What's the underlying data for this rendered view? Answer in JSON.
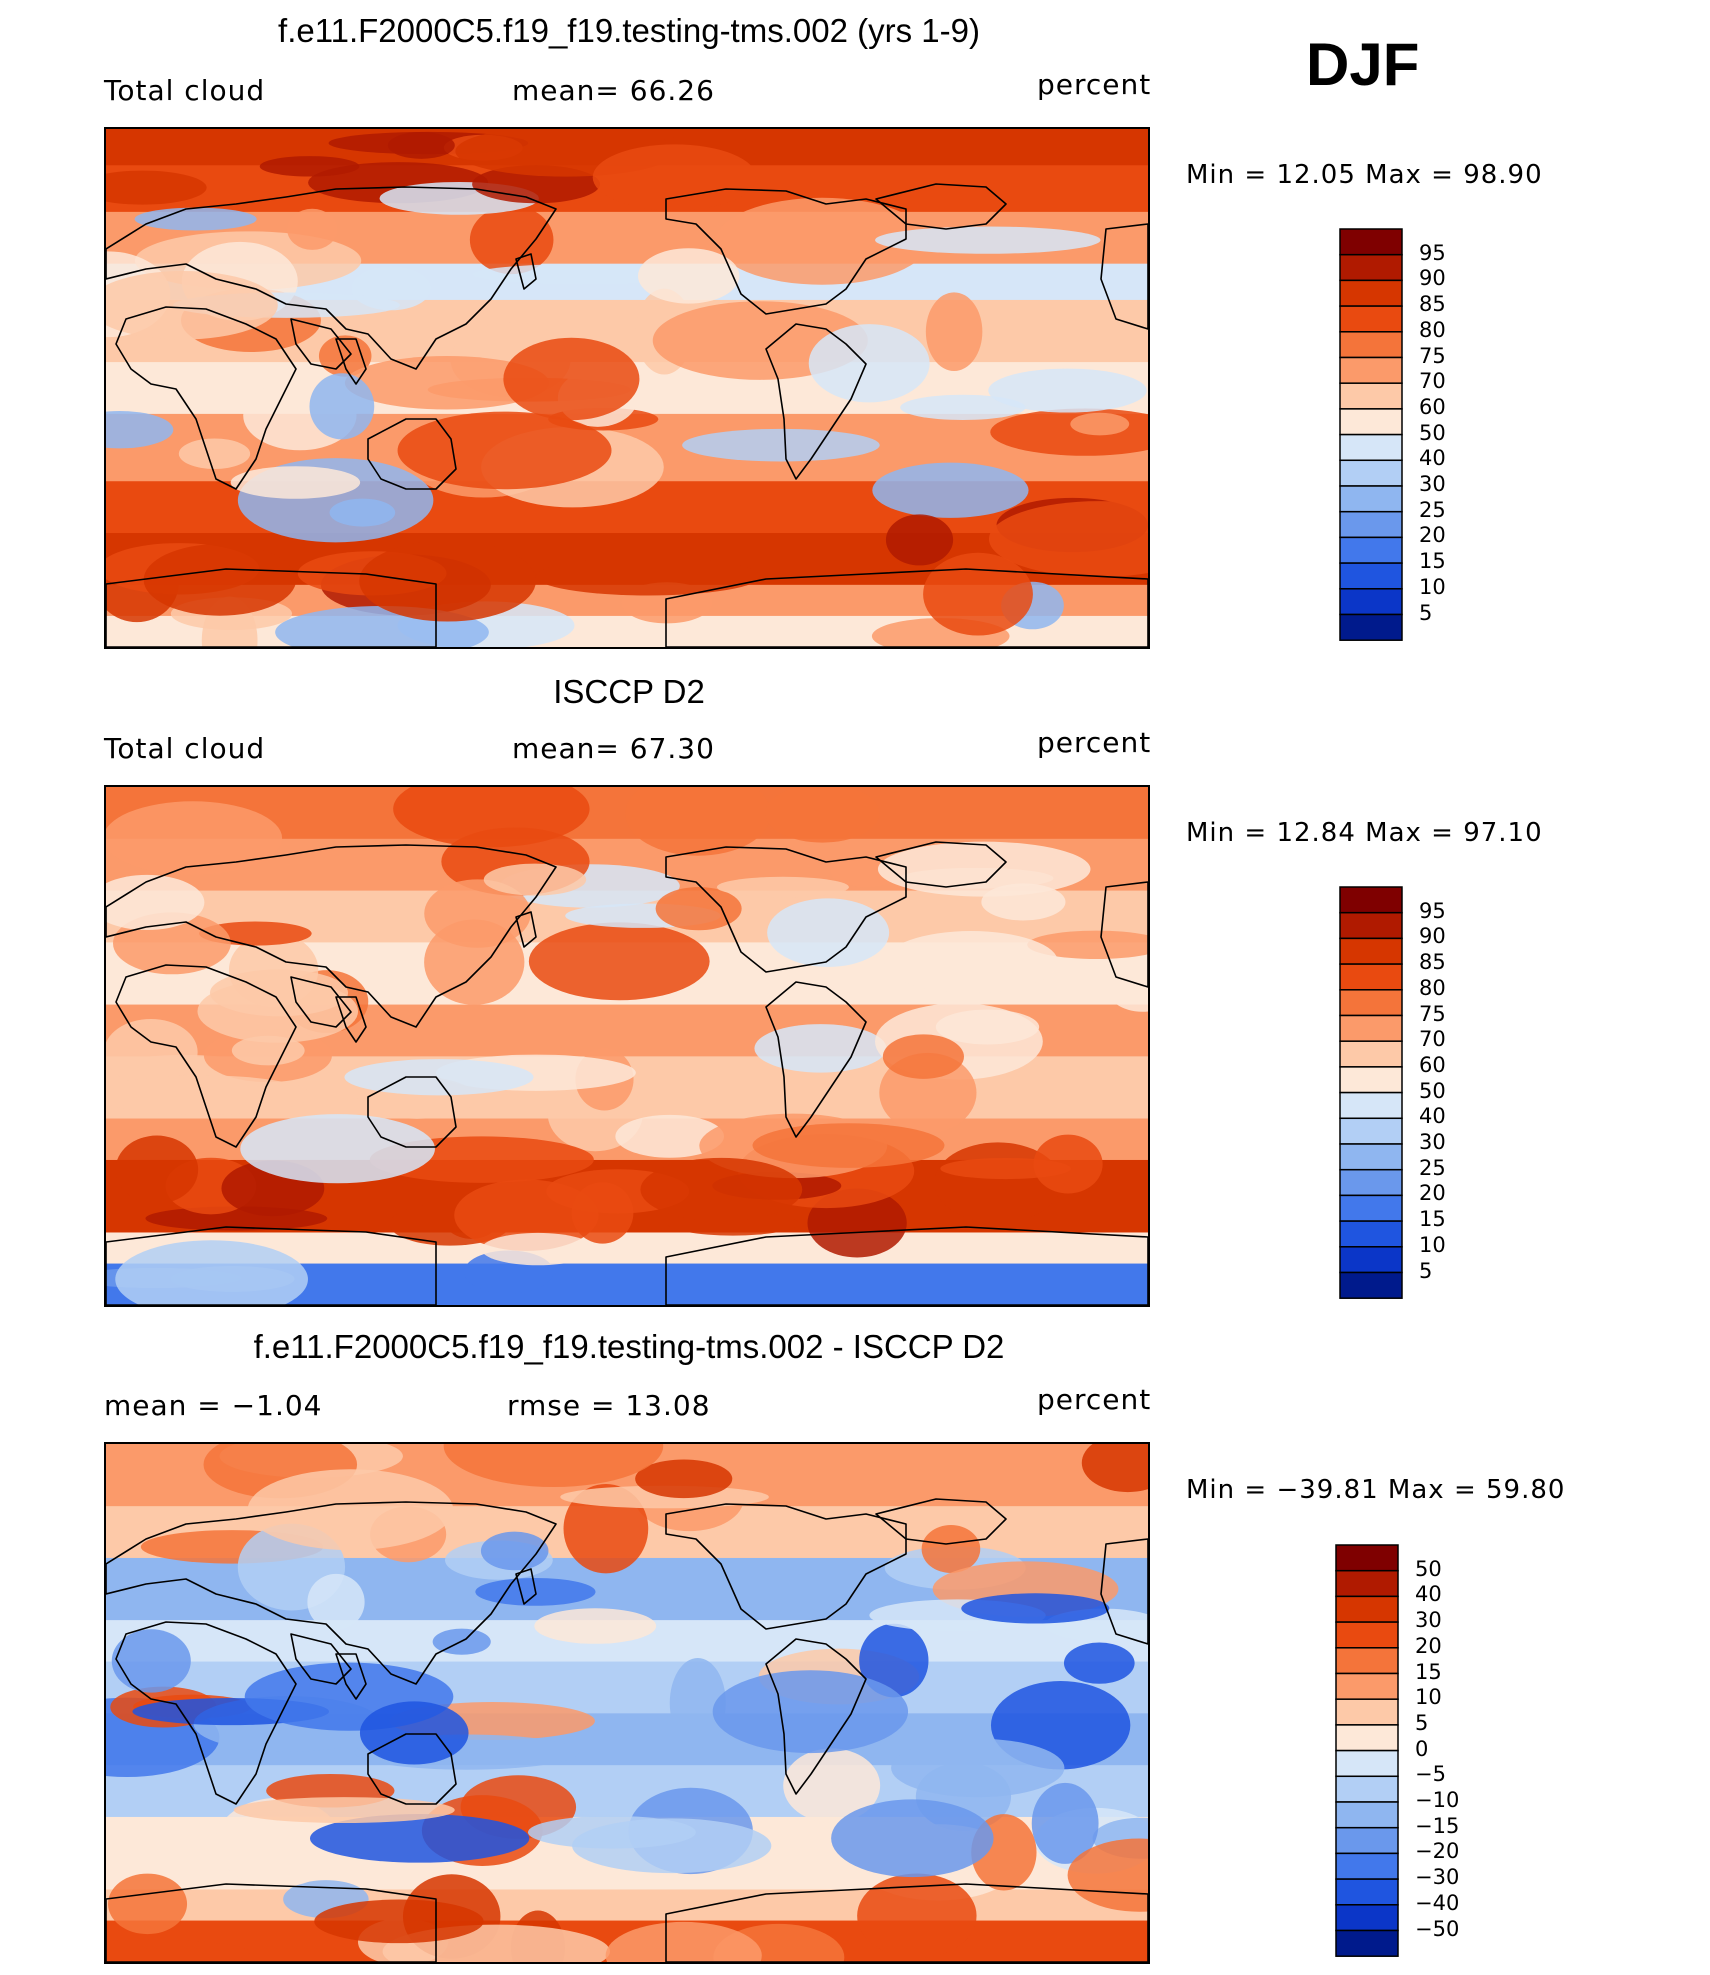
{
  "season": "DJF",
  "panels": [
    {
      "title": "f.e11.F2000C5.f19_f19.testing-tms.002 (yrs 1-9)",
      "left_label": "Total cloud",
      "center_label": "mean=   66.26",
      "right_label": "percent",
      "minmax": "Min =   12.05 Max =   98.90",
      "map_kind": "model",
      "colorbar": {
        "labels": [
          "95",
          "90",
          "85",
          "80",
          "75",
          "70",
          "60",
          "50",
          "40",
          "30",
          "25",
          "20",
          "15",
          "10",
          "5"
        ],
        "colors": [
          "#7f0000",
          "#b01a00",
          "#d63600",
          "#e94a10",
          "#f4743a",
          "#fb9a6a",
          "#fdc9a8",
          "#fde8d8",
          "#d6e6f8",
          "#b2cff5",
          "#8fb6f0",
          "#6a98ec",
          "#4278eb",
          "#1f55e0",
          "#0b36c8",
          "#001a8c"
        ]
      }
    },
    {
      "title": "ISCCP D2",
      "left_label": "Total cloud",
      "center_label": "mean=   67.30",
      "right_label": "percent",
      "minmax": "Min =   12.84 Max =   97.10",
      "map_kind": "obs",
      "colorbar": {
        "labels": [
          "95",
          "90",
          "85",
          "80",
          "75",
          "70",
          "60",
          "50",
          "40",
          "30",
          "25",
          "20",
          "15",
          "10",
          "5"
        ],
        "colors": [
          "#7f0000",
          "#b01a00",
          "#d63600",
          "#e94a10",
          "#f4743a",
          "#fb9a6a",
          "#fdc9a8",
          "#fde8d8",
          "#d6e6f8",
          "#b2cff5",
          "#8fb6f0",
          "#6a98ec",
          "#4278eb",
          "#1f55e0",
          "#0b36c8",
          "#001a8c"
        ]
      }
    },
    {
      "title": "f.e11.F2000C5.f19_f19.testing-tms.002 - ISCCP D2",
      "left_label": "mean =   −1.04",
      "center_label": "rmse =   13.08",
      "right_label": "percent",
      "minmax": "Min = −39.81 Max =   59.80",
      "map_kind": "diff",
      "colorbar": {
        "labels": [
          "50",
          "40",
          "30",
          "20",
          "15",
          "10",
          "5",
          "0",
          "−5",
          "−10",
          "−15",
          "−20",
          "−30",
          "−40",
          "−50"
        ],
        "colors": [
          "#7f0000",
          "#b01a00",
          "#d63600",
          "#e94a10",
          "#f4743a",
          "#fb9a6a",
          "#fdc9a8",
          "#fde8d8",
          "#d6e6f8",
          "#b2cff5",
          "#8fb6f0",
          "#6a98ec",
          "#4278eb",
          "#1f55e0",
          "#0b36c8",
          "#001a8c"
        ]
      }
    }
  ]
}
